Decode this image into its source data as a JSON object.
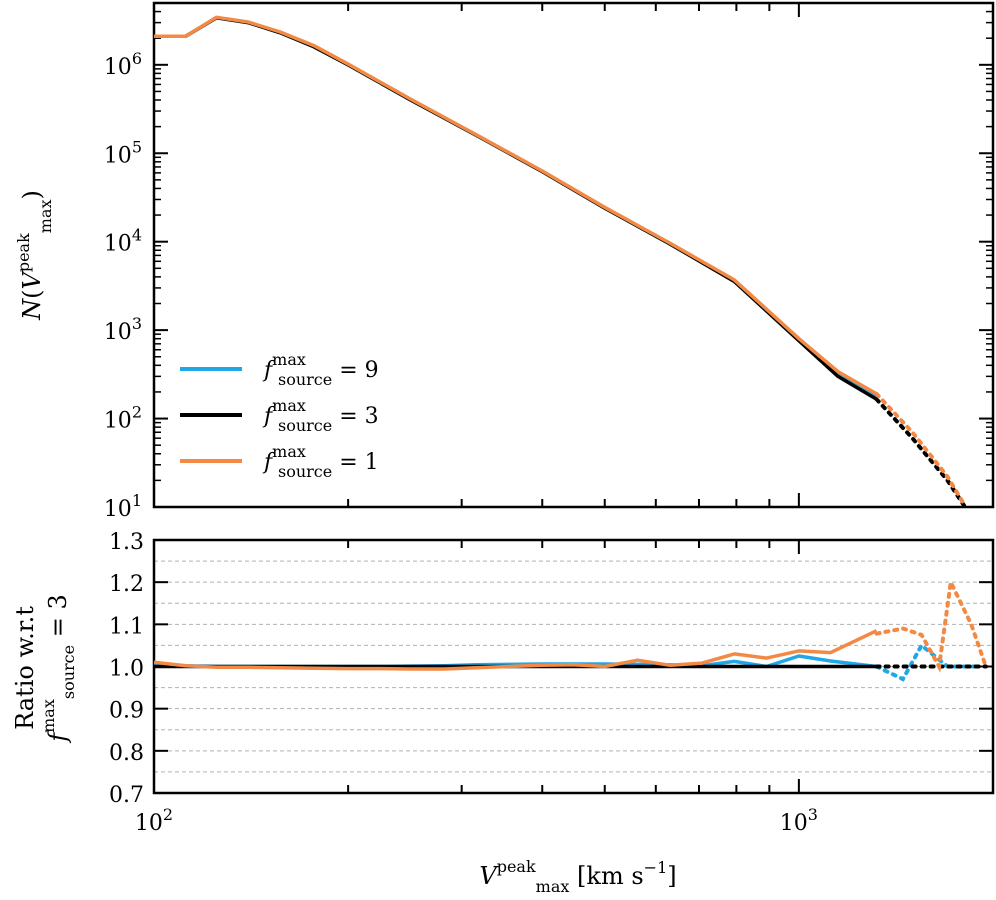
{
  "chart_data": [
    {
      "type": "line",
      "panel": "top",
      "ylabel": "N(V_max^peak)",
      "xscale": "log",
      "yscale": "log",
      "xlim": [
        100,
        2000
      ],
      "ylim": [
        10,
        5000000
      ],
      "yticks": [
        {
          "value": 10,
          "base": "10",
          "exp": "1"
        },
        {
          "value": 100,
          "base": "10",
          "exp": "2"
        },
        {
          "value": 1000,
          "base": "10",
          "exp": "3"
        },
        {
          "value": 10000,
          "base": "10",
          "exp": "4"
        },
        {
          "value": 100000,
          "base": "10",
          "exp": "5"
        },
        {
          "value": 1000000,
          "base": "10",
          "exp": "6"
        }
      ],
      "legend": {
        "position": "lower-left",
        "entries": [
          {
            "series": "f9",
            "text_pre": "f",
            "sup": "max",
            "sub": "source",
            "text_post": " = 9"
          },
          {
            "series": "f3",
            "text_pre": "f",
            "sup": "max",
            "sub": "source",
            "text_post": " = 3"
          },
          {
            "series": "f1",
            "text_pre": "f",
            "sup": "max",
            "sub": "source",
            "text_post": " = 1"
          }
        ]
      },
      "series": [
        {
          "id": "f9",
          "color": "#1fa7e6",
          "style": "solid",
          "x": [
            100,
            112,
            125,
            140,
            157,
            177,
            200,
            250,
            316,
            400,
            500,
            630,
            794,
            1000,
            1150,
            1320
          ],
          "y": [
            2100000,
            2100000,
            3400000,
            3000000,
            2300000,
            1600000,
            1000000,
            400000,
            160000,
            62000,
            24000,
            9500,
            3600,
            800,
            330,
            180
          ]
        },
        {
          "id": "f3",
          "color": "#000000",
          "style": "solid",
          "x": [
            100,
            112,
            125,
            140,
            157,
            177,
            200,
            250,
            316,
            400,
            500,
            630,
            794,
            1000,
            1150,
            1320
          ],
          "y": [
            2100000,
            2100000,
            3400000,
            3000000,
            2300000,
            1600000,
            1000000,
            400000,
            160000,
            62000,
            24000,
            9500,
            3550,
            760,
            300,
            165
          ]
        },
        {
          "id": "f1",
          "color": "#f28a45",
          "style": "solid",
          "x": [
            100,
            112,
            125,
            140,
            157,
            177,
            200,
            250,
            316,
            400,
            500,
            630,
            794,
            1000,
            1150,
            1320
          ],
          "y": [
            2100000,
            2100000,
            3450000,
            3050000,
            2350000,
            1650000,
            1020000,
            410000,
            162000,
            63000,
            24500,
            9700,
            3700,
            800,
            340,
            190
          ]
        },
        {
          "id": "f3-ext",
          "color": "#000000",
          "style": "dotted",
          "x": [
            1320,
            1500,
            1700,
            1810
          ],
          "y": [
            165,
            60,
            20,
            10
          ]
        },
        {
          "id": "f1-ext",
          "color": "#f28a45",
          "style": "dotted",
          "x": [
            1320,
            1500,
            1700,
            1800
          ],
          "y": [
            190,
            70,
            22,
            11
          ]
        }
      ]
    },
    {
      "type": "line",
      "panel": "bottom",
      "xlabel": "V_max^peak [km s^-1]",
      "ylabel": "Ratio w.r.t f_source^max = 3",
      "xscale": "log",
      "xlim": [
        100,
        2000
      ],
      "ylim": [
        0.7,
        1.3
      ],
      "grid": "horizontal dashed",
      "yticks": [
        "0.7",
        "0.8",
        "0.9",
        "1.0",
        "1.1",
        "1.2",
        "1.3"
      ],
      "xticks": [
        {
          "value": 100,
          "base": "10",
          "exp": "2"
        },
        {
          "value": 1000,
          "base": "10",
          "exp": "3"
        }
      ],
      "series": [
        {
          "id": "r9",
          "color": "#1fa7e6",
          "style": "solid",
          "x": [
            100,
            112,
            125,
            140,
            157,
            177,
            200,
            224,
            250,
            282,
            316,
            355,
            400,
            447,
            500,
            562,
            630,
            708,
            794,
            891,
            1000,
            1120,
            1320
          ],
          "y": [
            1.005,
            1.002,
            1.0,
            1.0,
            1.0,
            1.0,
            1.0,
            1.0,
            1.001,
            1.002,
            1.004,
            1.005,
            1.006,
            1.006,
            1.006,
            1.005,
            1.004,
            1.002,
            1.012,
            1.0,
            1.025,
            1.013,
            1.0
          ]
        },
        {
          "id": "r3",
          "color": "#000000",
          "style": "solid",
          "x": [
            100,
            1320
          ],
          "y": [
            1.0,
            1.0
          ]
        },
        {
          "id": "r1",
          "color": "#f28a45",
          "style": "solid",
          "x": [
            100,
            112,
            125,
            140,
            157,
            177,
            200,
            224,
            250,
            282,
            316,
            355,
            400,
            447,
            500,
            562,
            630,
            708,
            794,
            891,
            1000,
            1120,
            1320
          ],
          "y": [
            1.01,
            1.002,
            0.998,
            0.998,
            0.997,
            0.996,
            0.995,
            0.995,
            0.994,
            0.994,
            0.997,
            1.0,
            1.003,
            1.004,
            1.0,
            1.015,
            1.003,
            1.008,
            1.03,
            1.02,
            1.037,
            1.033,
            1.085
          ]
        },
        {
          "id": "r9-ext",
          "color": "#1fa7e6",
          "style": "dotted",
          "x": [
            1320,
            1450,
            1550,
            1700,
            1800,
            1900
          ],
          "y": [
            1.0,
            0.97,
            1.05,
            1.0,
            1.0,
            1.0
          ]
        },
        {
          "id": "r3-ext",
          "color": "#000000",
          "style": "dotted",
          "x": [
            1320,
            1950
          ],
          "y": [
            1.0,
            1.0
          ]
        },
        {
          "id": "r1-ext",
          "color": "#f28a45",
          "style": "dotted",
          "x": [
            1320,
            1450,
            1550,
            1650,
            1720,
            1850,
            1950
          ],
          "y": [
            1.078,
            1.09,
            1.075,
            1.0,
            1.2,
            1.1,
            1.0
          ]
        }
      ]
    }
  ]
}
